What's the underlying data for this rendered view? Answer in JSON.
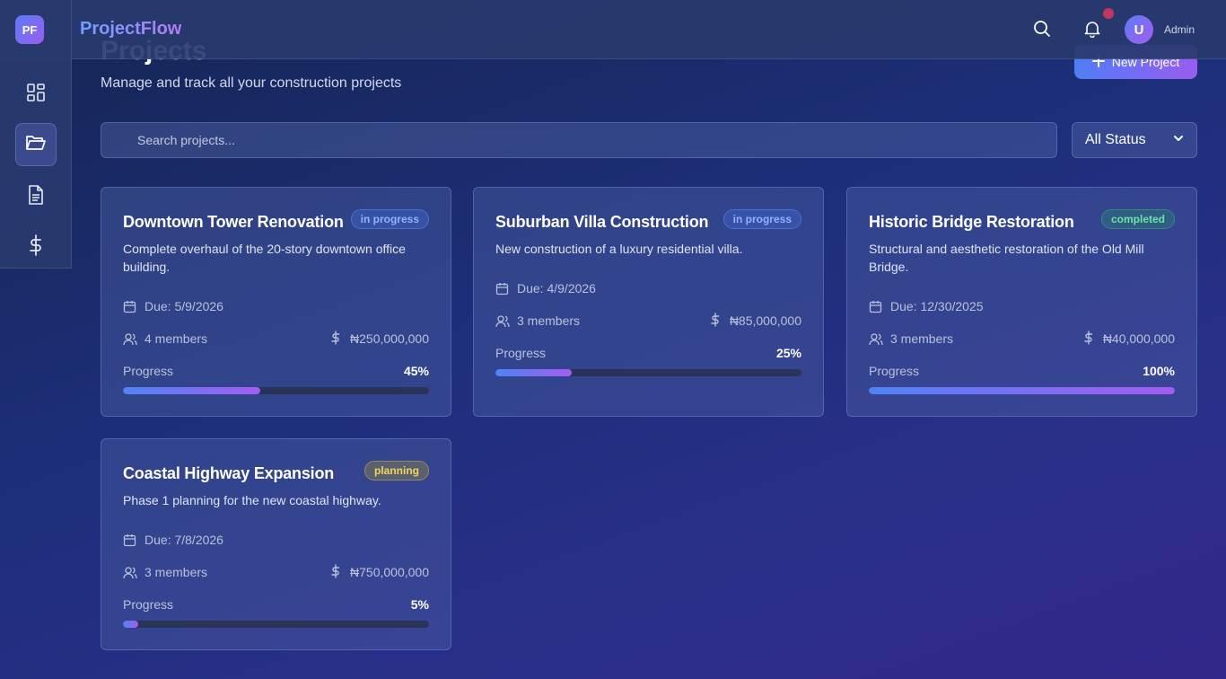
{
  "app": {
    "logo": "PF",
    "name": "ProjectFlow"
  },
  "header": {
    "user_initial": "U",
    "user_name": "Admin"
  },
  "page": {
    "title": "Projects",
    "subtitle": "Manage and track all your construction projects",
    "new_button": "New Project"
  },
  "search": {
    "placeholder": "Search projects..."
  },
  "filter": {
    "selected": "All Status"
  },
  "labels": {
    "progress": "Progress"
  },
  "projects": [
    {
      "title": "Downtown Tower Renovation",
      "status": "in progress",
      "description": "Complete overhaul of the 20-story downtown office building.",
      "due": "Due: 5/9/2026",
      "members": "4 members",
      "budget": "₦250,000,000",
      "progress_text": "45%",
      "progress": 45
    },
    {
      "title": "Suburban Villa Construction",
      "status": "in progress",
      "description": "New construction of a luxury residential villa.",
      "due": "Due: 4/9/2026",
      "members": "3 members",
      "budget": "₦85,000,000",
      "progress_text": "25%",
      "progress": 25
    },
    {
      "title": "Historic Bridge Restoration",
      "status": "completed",
      "description": "Structural and aesthetic restoration of the Old Mill Bridge.",
      "due": "Due: 12/30/2025",
      "members": "3 members",
      "budget": "₦40,000,000",
      "progress_text": "100%",
      "progress": 100
    },
    {
      "title": "Coastal Highway Expansion",
      "status": "planning",
      "description": "Phase 1 planning for the new coastal highway.",
      "due": "Due: 7/8/2026",
      "members": "3 members",
      "budget": "₦750,000,000",
      "progress_text": "5%",
      "progress": 5
    }
  ],
  "colors": {
    "accent_start": "#4f83f5",
    "accent_end": "#a45cf0",
    "in_progress": "#8fb4ff",
    "completed": "#6ee3a8",
    "planning": "#f1d35a",
    "notification": "#c0395a"
  },
  "icons": {
    "sidebar": [
      "dashboard-icon",
      "folder-icon",
      "document-icon",
      "dollar-icon"
    ],
    "header": [
      "search-icon",
      "bell-icon"
    ],
    "card": [
      "calendar-icon",
      "users-icon",
      "dollar-icon"
    ]
  }
}
